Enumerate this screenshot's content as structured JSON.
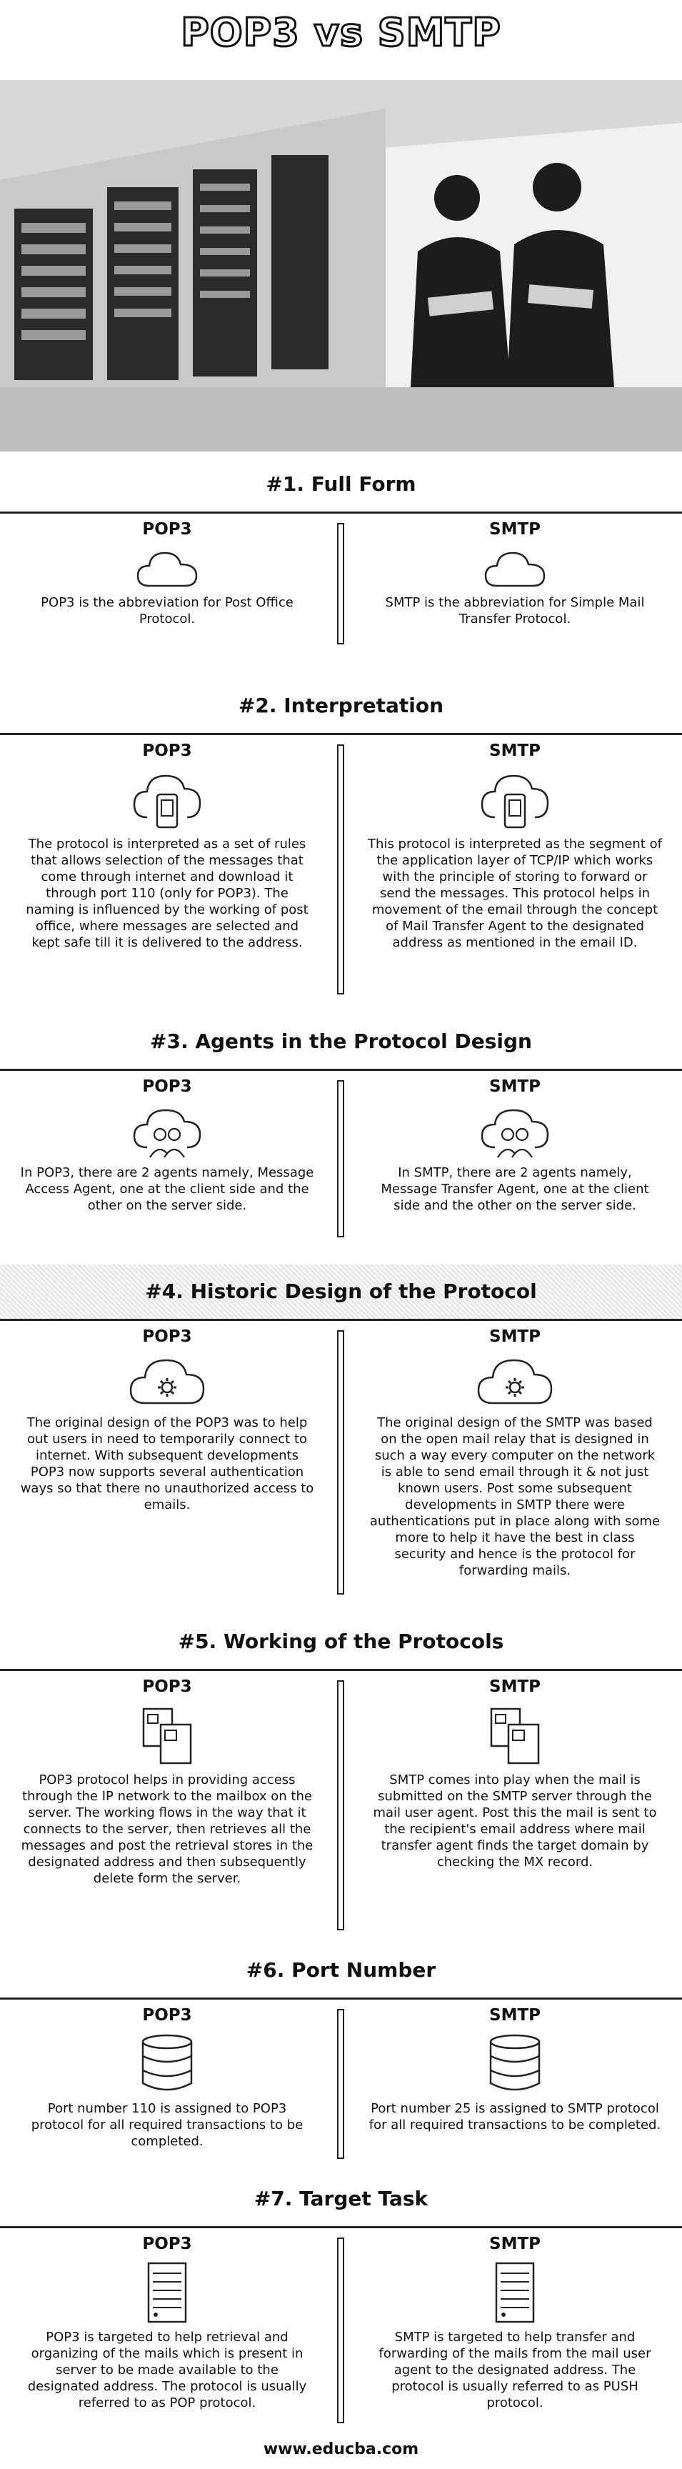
{
  "title": "POP3 vs SMTP",
  "footer": "www.educba.com",
  "hero": {
    "icon": "office-photo-image"
  },
  "sections": [
    {
      "title": "#1. Full Form",
      "left": {
        "heading": "POP3",
        "icon": "cloud-icon",
        "text": "POP3 is the abbreviation for Post Office Protocol."
      },
      "right": {
        "heading": "SMTP",
        "icon": "cloud-icon",
        "text": "SMTP is the abbreviation for Simple Mail Transfer Protocol."
      }
    },
    {
      "title": "#2. Interpretation",
      "left": {
        "heading": "POP3",
        "icon": "cloud-phone-icon",
        "text": "The protocol is interpreted as a set of rules that allows selection of the messages that come through internet and download it through port 110 (only for POP3). The naming is influenced by the working of post office, where messages are selected and kept safe till it is delivered to the address."
      },
      "right": {
        "heading": "SMTP",
        "icon": "cloud-phone-icon",
        "text": "This protocol is interpreted as the segment of the application layer of TCP/IP which works with the principle of storing to forward or send the messages. This protocol helps in movement of the email through the concept of Mail Transfer Agent to the designated address as mentioned in the email ID."
      }
    },
    {
      "title": "#3. Agents in the Protocol Design",
      "left": {
        "heading": "POP3",
        "icon": "cloud-users-icon",
        "text": "In POP3, there are 2 agents namely, Message Access Agent, one at the client side and the other on the server side."
      },
      "right": {
        "heading": "SMTP",
        "icon": "cloud-users-icon",
        "text": "In SMTP, there are 2 agents namely, Message Transfer Agent, one at the client side and the other on the server side."
      }
    },
    {
      "title": "#4. Historic Design of the Protocol",
      "left": {
        "heading": "POP3",
        "icon": "cloud-gear-icon",
        "text": "The original design of the POP3 was to help out users in need to temporarily connect to internet. With subsequent developments POP3 now supports several authentication ways so that there no unauthorized access to emails."
      },
      "right": {
        "heading": "SMTP",
        "icon": "cloud-gear-icon",
        "text": "The original design of the SMTP was based on the open mail relay that is designed in such a way every computer on the network is able to send email through it & not just known users. Post some subsequent developments in SMTP there were authentications put in place along with some more to help it have the best in class security and hence is the protocol for forwarding mails."
      }
    },
    {
      "title": "#5. Working of the Protocols",
      "left": {
        "heading": "POP3",
        "icon": "documents-icon",
        "text": "POP3 protocol helps in providing access through the IP network to the mailbox on the server. The working flows in the way that it connects to the server, then retrieves all the messages and post the retrieval stores in the designated address and then subsequently delete form the server."
      },
      "right": {
        "heading": "SMTP",
        "icon": "documents-icon",
        "text": "SMTP comes into play when the mail is submitted on the SMTP server through the mail user agent. Post this the mail is sent to the recipient's email address where mail transfer agent finds the target domain by checking the MX record."
      }
    },
    {
      "title": "#6. Port Number",
      "left": {
        "heading": "POP3",
        "icon": "database-icon",
        "text": "Port number 110 is assigned to POP3 protocol for all required transactions to be completed."
      },
      "right": {
        "heading": "SMTP",
        "icon": "database-icon",
        "text": "Port number 25 is assigned to SMTP protocol for all required transactions to be completed."
      }
    },
    {
      "title": "#7. Target Task",
      "left": {
        "heading": "POP3",
        "icon": "server-icon",
        "text": "POP3 is targeted to help retrieval and organizing of the mails which is present in server to be made available to the designated address. The protocol is usually referred to as POP protocol."
      },
      "right": {
        "heading": "SMTP",
        "icon": "server-icon",
        "text": "SMTP is targeted to help transfer and forwarding of the mails from the mail user agent to the designated address. The protocol is usually referred to as PUSH protocol."
      }
    }
  ]
}
